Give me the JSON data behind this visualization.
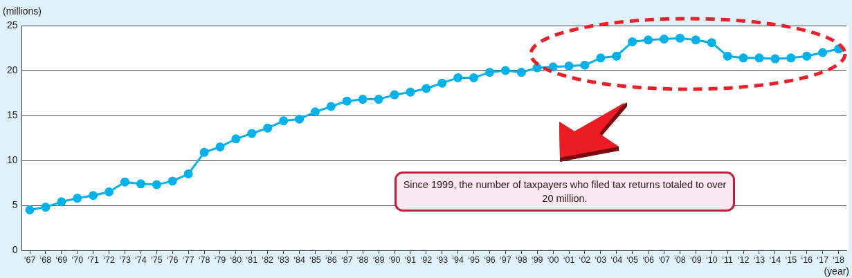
{
  "chart_data": {
    "type": "line",
    "ylabel": "(millions)",
    "xlabel": "(year)",
    "categories": [
      "‘67",
      "‘68",
      "‘69",
      "‘70",
      "‘71",
      "‘72",
      "‘73",
      "‘74",
      "‘75",
      "‘76",
      "‘77",
      "‘78",
      "‘79",
      "‘80",
      "‘81",
      "‘82",
      "‘83",
      "‘84",
      "‘85",
      "‘86",
      "‘87",
      "‘88",
      "‘89",
      "‘90",
      "‘91",
      "‘92",
      "‘93",
      "‘94",
      "‘95",
      "‘96",
      "‘97",
      "‘98",
      "‘99",
      "‘00",
      "‘01",
      "‘02",
      "‘03",
      "‘04",
      "‘05",
      "‘06",
      "‘07",
      "‘08",
      "‘09",
      "‘10",
      "‘11",
      "‘12",
      "‘13",
      "‘14",
      "‘15",
      "‘16",
      "‘17",
      "‘18"
    ],
    "series": [
      {
        "color": "#00b0e8",
        "values": [
          4.5,
          4.8,
          5.4,
          5.8,
          6.1,
          6.5,
          7.6,
          7.4,
          7.3,
          7.7,
          8.5,
          10.9,
          11.5,
          12.4,
          13.0,
          13.6,
          14.4,
          14.6,
          15.4,
          16.0,
          16.6,
          16.8,
          16.8,
          17.3,
          17.6,
          18.0,
          18.6,
          19.2,
          19.2,
          19.8,
          20.0,
          19.8,
          20.3,
          20.4,
          20.5,
          20.6,
          21.4,
          21.6,
          23.2,
          23.4,
          23.5,
          23.6,
          23.4,
          23.1,
          21.6,
          21.4,
          21.4,
          21.3,
          21.4,
          21.6,
          22.0,
          22.4
        ]
      }
    ],
    "ylim": [
      0,
      25
    ],
    "yticks": [
      0,
      5,
      10,
      15,
      20,
      25
    ],
    "grid": "y",
    "legend": false,
    "marker": "circle",
    "line_style": "solid",
    "annotations": [
      "Since 1999, the number of taxpayers who filed tax returns totaled to over 20 million."
    ]
  }
}
